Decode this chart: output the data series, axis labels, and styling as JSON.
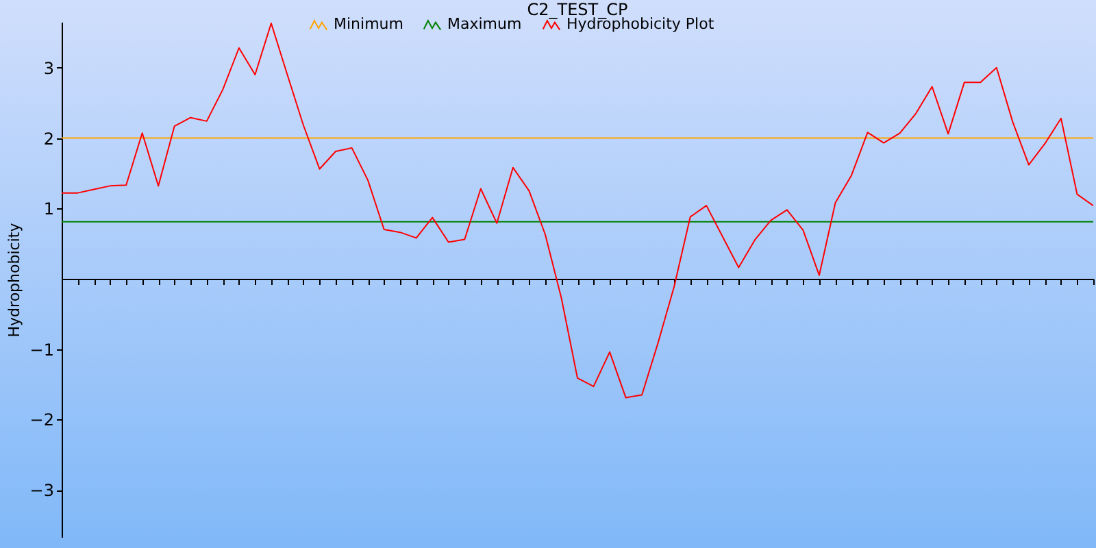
{
  "chart_data": {
    "type": "line",
    "title": "C2_TEST_CP",
    "ylabel": "Hydrophobicity",
    "categories": [
      null,
      null,
      null,
      null,
      null,
      null,
      null,
      null,
      null,
      null,
      null,
      null,
      null,
      null,
      null,
      null,
      null,
      null,
      null,
      null,
      null,
      null,
      null,
      null,
      null,
      null,
      null,
      null,
      null,
      null,
      null,
      null,
      null,
      null,
      null,
      null,
      null,
      null,
      null,
      null,
      null,
      null,
      null,
      null,
      null,
      null,
      null,
      null,
      null,
      null,
      null,
      null,
      null,
      null,
      null,
      null,
      null,
      null,
      null,
      null,
      null,
      null,
      null,
      null,
      null
    ],
    "ylim": [
      -3.67,
      3.65
    ],
    "yticks": [
      -3,
      -2,
      -1,
      1,
      2,
      3
    ],
    "grid": false,
    "legend": "top",
    "marker": "none",
    "line_style": "solid",
    "series": [
      {
        "name": "Minimum",
        "color": "#ffa500",
        "values": [
          2,
          2,
          2,
          2,
          2,
          2,
          2,
          2,
          2,
          2,
          2,
          2,
          2,
          2,
          2,
          2,
          2,
          2,
          2,
          2,
          2,
          2,
          2,
          2,
          2,
          2,
          2,
          2,
          2,
          2,
          2,
          2,
          2,
          2,
          2,
          2,
          2,
          2,
          2,
          2,
          2,
          2,
          2,
          2,
          2,
          2,
          2,
          2,
          2,
          2,
          2,
          2,
          2,
          2,
          2,
          2,
          2,
          2,
          2,
          2,
          2,
          2,
          2,
          2,
          2
        ]
      },
      {
        "name": "Maximum",
        "color": "#008000",
        "values": [
          0.81,
          0.81,
          0.81,
          0.81,
          0.81,
          0.81,
          0.81,
          0.81,
          0.81,
          0.81,
          0.81,
          0.81,
          0.81,
          0.81,
          0.81,
          0.81,
          0.81,
          0.81,
          0.81,
          0.81,
          0.81,
          0.81,
          0.81,
          0.81,
          0.81,
          0.81,
          0.81,
          0.81,
          0.81,
          0.81,
          0.81,
          0.81,
          0.81,
          0.81,
          0.81,
          0.81,
          0.81,
          0.81,
          0.81,
          0.81,
          0.81,
          0.81,
          0.81,
          0.81,
          0.81,
          0.81,
          0.81,
          0.81,
          0.81,
          0.81,
          0.81,
          0.81,
          0.81,
          0.81,
          0.81,
          0.81,
          0.81,
          0.81,
          0.81,
          0.81,
          0.81,
          0.81,
          0.81,
          0.81,
          0.81
        ]
      },
      {
        "name": "Hydrophobicity Plot",
        "color": "#ff0000",
        "values": [
          1.22,
          1.22,
          1.27,
          1.32,
          1.33,
          2.07,
          1.32,
          2.17,
          2.29,
          2.24,
          2.69,
          3.28,
          2.9,
          3.63,
          2.9,
          2.18,
          1.56,
          1.81,
          1.86,
          1.4,
          0.7,
          0.66,
          0.58,
          0.87,
          0.52,
          0.56,
          1.28,
          0.79,
          1.58,
          1.25,
          0.63,
          -0.27,
          -1.41,
          -1.53,
          -1.04,
          -1.69,
          -1.65,
          -0.91,
          -0.11,
          0.88,
          1.04,
          0.6,
          0.16,
          0.55,
          0.83,
          0.98,
          0.69,
          0.05,
          1.08,
          1.47,
          2.08,
          1.93,
          2.07,
          2.35,
          2.73,
          2.06,
          2.79,
          2.79,
          3,
          2.23,
          1.62,
          1.92,
          2.28,
          1.2,
          1.04
        ]
      }
    ]
  }
}
